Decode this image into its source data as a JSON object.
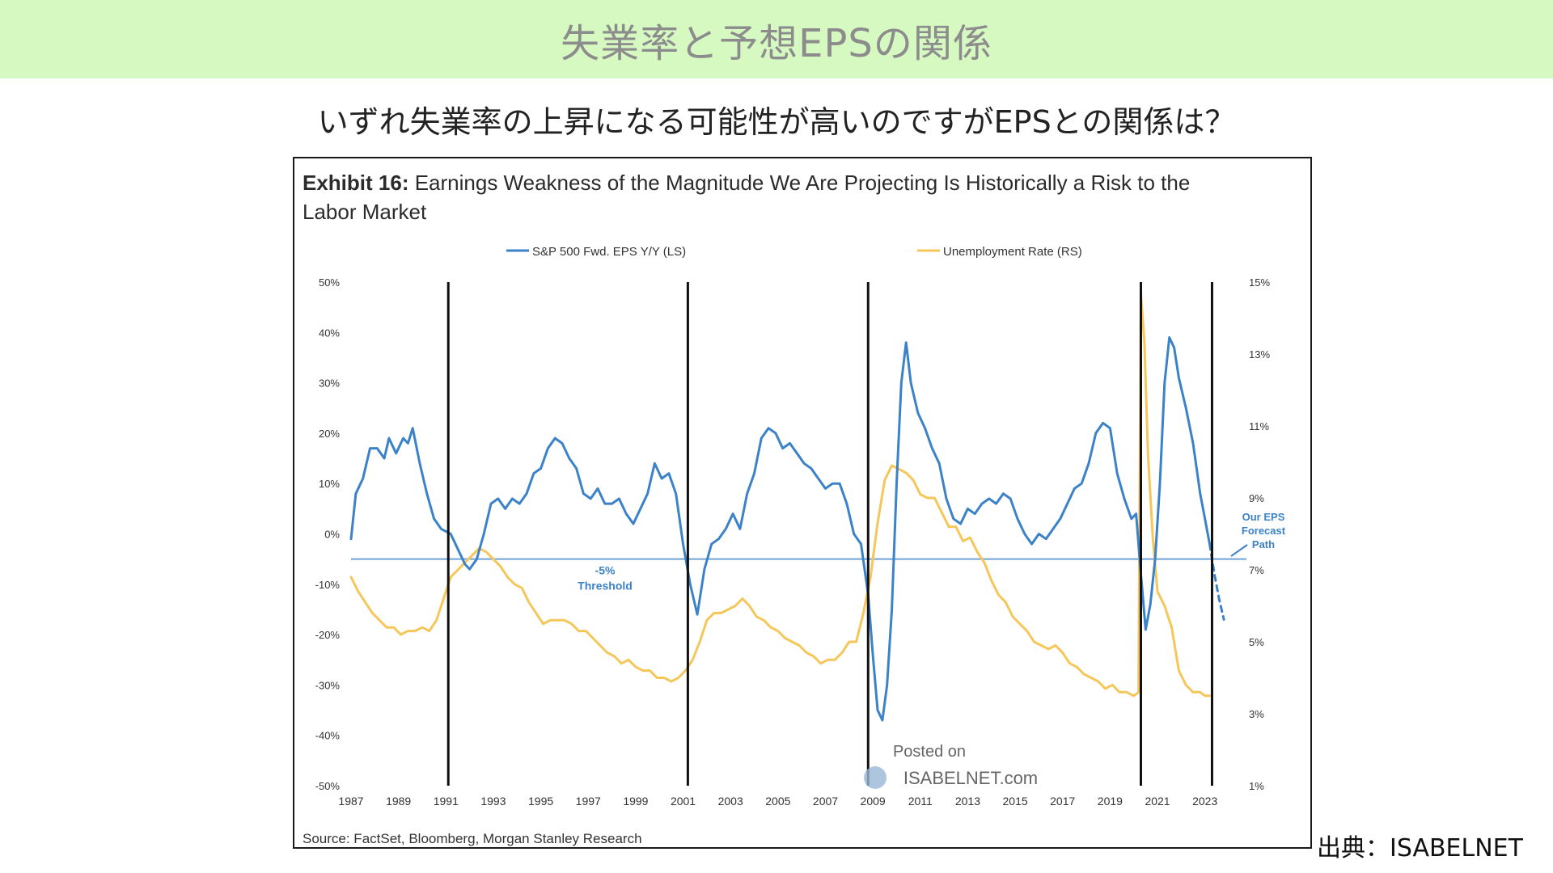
{
  "header": {
    "title": "失業率と予想EPSの関係"
  },
  "subtitle": "いずれ失業率の上昇になる可能性が高いのですがEPSとの関係は？",
  "credit": "出典：ISABELNET",
  "chart": {
    "exhibit_label": "Exhibit 16:",
    "exhibit_title_line1": "Earnings Weakness of the Magnitude We Are Projecting Is Historically a Risk to the",
    "exhibit_title_line2": "Labor Market",
    "source": "Source: FactSet, Bloomberg, Morgan Stanley Research",
    "watermark_line1": "Posted on",
    "watermark_line2": "ISABELNET.com",
    "threshold_label_1": "-5%",
    "threshold_label_2": "Threshold",
    "forecast_label": [
      "Our EPS",
      "Forecast",
      "Path"
    ]
  },
  "chart_data": {
    "type": "line",
    "legend_position": "top-center",
    "grid": false,
    "x_ticks": [
      "1987",
      "1989",
      "1991",
      "1993",
      "1995",
      "1997",
      "1999",
      "2001",
      "2003",
      "2005",
      "2007",
      "2009",
      "2011",
      "2013",
      "2015",
      "2017",
      "2019",
      "2021",
      "2023"
    ],
    "y_left_ticks": [
      "50%",
      "40%",
      "30%",
      "20%",
      "10%",
      "0%",
      "-10%",
      "-20%",
      "-30%",
      "-40%",
      "-50%"
    ],
    "y_right_ticks": [
      "15%",
      "13%",
      "11%",
      "9%",
      "7%",
      "5%",
      "3%",
      "1%"
    ],
    "ylim_left": [
      -50,
      50
    ],
    "ylim_right": [
      1,
      15
    ],
    "xlim": [
      1987,
      2024
    ],
    "threshold": -5,
    "recession_lines": [
      1991.1,
      2001.2,
      2008.8,
      2020.3,
      2023.3
    ],
    "series": [
      {
        "name": "S&P 500 Fwd. EPS Y/Y (LS)",
        "axis": "left",
        "color": "#3b82c9",
        "points": [
          [
            1987.0,
            -1
          ],
          [
            1987.2,
            8
          ],
          [
            1987.5,
            11
          ],
          [
            1987.8,
            17
          ],
          [
            1988.1,
            17
          ],
          [
            1988.4,
            15
          ],
          [
            1988.6,
            19
          ],
          [
            1988.9,
            16
          ],
          [
            1989.2,
            19
          ],
          [
            1989.4,
            18
          ],
          [
            1989.6,
            21
          ],
          [
            1989.9,
            14
          ],
          [
            1990.2,
            8
          ],
          [
            1990.5,
            3
          ],
          [
            1990.8,
            1
          ],
          [
            1991.2,
            0
          ],
          [
            1991.5,
            -3
          ],
          [
            1991.8,
            -6
          ],
          [
            1992.0,
            -7
          ],
          [
            1992.3,
            -5
          ],
          [
            1992.6,
            0
          ],
          [
            1992.9,
            6
          ],
          [
            1993.2,
            7
          ],
          [
            1993.5,
            5
          ],
          [
            1993.8,
            7
          ],
          [
            1994.1,
            6
          ],
          [
            1994.4,
            8
          ],
          [
            1994.7,
            12
          ],
          [
            1995.0,
            13
          ],
          [
            1995.3,
            17
          ],
          [
            1995.6,
            19
          ],
          [
            1995.9,
            18
          ],
          [
            1996.2,
            15
          ],
          [
            1996.5,
            13
          ],
          [
            1996.8,
            8
          ],
          [
            1997.1,
            7
          ],
          [
            1997.4,
            9
          ],
          [
            1997.7,
            6
          ],
          [
            1998.0,
            6
          ],
          [
            1998.3,
            7
          ],
          [
            1998.6,
            4
          ],
          [
            1998.9,
            2
          ],
          [
            1999.2,
            5
          ],
          [
            1999.5,
            8
          ],
          [
            1999.8,
            14
          ],
          [
            2000.1,
            11
          ],
          [
            2000.4,
            12
          ],
          [
            2000.7,
            8
          ],
          [
            2001.0,
            -2
          ],
          [
            2001.3,
            -10
          ],
          [
            2001.6,
            -16
          ],
          [
            2001.9,
            -7
          ],
          [
            2002.2,
            -2
          ],
          [
            2002.5,
            -1
          ],
          [
            2002.8,
            1
          ],
          [
            2003.1,
            4
          ],
          [
            2003.4,
            1
          ],
          [
            2003.7,
            8
          ],
          [
            2004.0,
            12
          ],
          [
            2004.3,
            19
          ],
          [
            2004.6,
            21
          ],
          [
            2004.9,
            20
          ],
          [
            2005.2,
            17
          ],
          [
            2005.5,
            18
          ],
          [
            2005.8,
            16
          ],
          [
            2006.1,
            14
          ],
          [
            2006.4,
            13
          ],
          [
            2006.7,
            11
          ],
          [
            2007.0,
            9
          ],
          [
            2007.3,
            10
          ],
          [
            2007.6,
            10
          ],
          [
            2007.9,
            6
          ],
          [
            2008.2,
            0
          ],
          [
            2008.5,
            -2
          ],
          [
            2008.8,
            -12
          ],
          [
            2009.0,
            -24
          ],
          [
            2009.2,
            -35
          ],
          [
            2009.4,
            -37
          ],
          [
            2009.6,
            -30
          ],
          [
            2009.8,
            -15
          ],
          [
            2010.0,
            10
          ],
          [
            2010.2,
            30
          ],
          [
            2010.4,
            38
          ],
          [
            2010.6,
            30
          ],
          [
            2010.9,
            24
          ],
          [
            2011.2,
            21
          ],
          [
            2011.5,
            17
          ],
          [
            2011.8,
            14
          ],
          [
            2012.1,
            7
          ],
          [
            2012.4,
            3
          ],
          [
            2012.7,
            2
          ],
          [
            2013.0,
            5
          ],
          [
            2013.3,
            4
          ],
          [
            2013.6,
            6
          ],
          [
            2013.9,
            7
          ],
          [
            2014.2,
            6
          ],
          [
            2014.5,
            8
          ],
          [
            2014.8,
            7
          ],
          [
            2015.1,
            3
          ],
          [
            2015.4,
            0
          ],
          [
            2015.7,
            -2
          ],
          [
            2016.0,
            0
          ],
          [
            2016.3,
            -1
          ],
          [
            2016.6,
            1
          ],
          [
            2016.9,
            3
          ],
          [
            2017.2,
            6
          ],
          [
            2017.5,
            9
          ],
          [
            2017.8,
            10
          ],
          [
            2018.1,
            14
          ],
          [
            2018.4,
            20
          ],
          [
            2018.7,
            22
          ],
          [
            2019.0,
            21
          ],
          [
            2019.3,
            12
          ],
          [
            2019.6,
            7
          ],
          [
            2019.9,
            3
          ],
          [
            2020.1,
            4
          ],
          [
            2020.3,
            -8
          ],
          [
            2020.5,
            -19
          ],
          [
            2020.7,
            -14
          ],
          [
            2020.9,
            -5
          ],
          [
            2021.1,
            10
          ],
          [
            2021.3,
            30
          ],
          [
            2021.5,
            39
          ],
          [
            2021.7,
            37
          ],
          [
            2021.9,
            31
          ],
          [
            2022.2,
            25
          ],
          [
            2022.5,
            18
          ],
          [
            2022.8,
            8
          ],
          [
            2023.0,
            3
          ],
          [
            2023.2,
            -2
          ]
        ]
      },
      {
        "name": "Unemployment Rate (RS)",
        "axis": "right",
        "color": "#f5c75a",
        "points": [
          [
            1987.0,
            6.8
          ],
          [
            1987.3,
            6.4
          ],
          [
            1987.6,
            6.1
          ],
          [
            1987.9,
            5.8
          ],
          [
            1988.2,
            5.6
          ],
          [
            1988.5,
            5.4
          ],
          [
            1988.8,
            5.4
          ],
          [
            1989.1,
            5.2
          ],
          [
            1989.4,
            5.3
          ],
          [
            1989.7,
            5.3
          ],
          [
            1990.0,
            5.4
          ],
          [
            1990.3,
            5.3
          ],
          [
            1990.6,
            5.6
          ],
          [
            1990.9,
            6.2
          ],
          [
            1991.2,
            6.8
          ],
          [
            1991.5,
            7.0
          ],
          [
            1991.8,
            7.2
          ],
          [
            1992.1,
            7.4
          ],
          [
            1992.4,
            7.6
          ],
          [
            1992.7,
            7.5
          ],
          [
            1993.0,
            7.3
          ],
          [
            1993.3,
            7.1
          ],
          [
            1993.6,
            6.8
          ],
          [
            1993.9,
            6.6
          ],
          [
            1994.2,
            6.5
          ],
          [
            1994.5,
            6.1
          ],
          [
            1994.8,
            5.8
          ],
          [
            1995.1,
            5.5
          ],
          [
            1995.4,
            5.6
          ],
          [
            1995.7,
            5.6
          ],
          [
            1996.0,
            5.6
          ],
          [
            1996.3,
            5.5
          ],
          [
            1996.6,
            5.3
          ],
          [
            1996.9,
            5.3
          ],
          [
            1997.2,
            5.1
          ],
          [
            1997.5,
            4.9
          ],
          [
            1997.8,
            4.7
          ],
          [
            1998.1,
            4.6
          ],
          [
            1998.4,
            4.4
          ],
          [
            1998.7,
            4.5
          ],
          [
            1999.0,
            4.3
          ],
          [
            1999.3,
            4.2
          ],
          [
            1999.6,
            4.2
          ],
          [
            1999.9,
            4.0
          ],
          [
            2000.2,
            4.0
          ],
          [
            2000.5,
            3.9
          ],
          [
            2000.8,
            4.0
          ],
          [
            2001.1,
            4.2
          ],
          [
            2001.4,
            4.5
          ],
          [
            2001.7,
            5.0
          ],
          [
            2002.0,
            5.6
          ],
          [
            2002.3,
            5.8
          ],
          [
            2002.6,
            5.8
          ],
          [
            2002.9,
            5.9
          ],
          [
            2003.2,
            6.0
          ],
          [
            2003.5,
            6.2
          ],
          [
            2003.8,
            6.0
          ],
          [
            2004.1,
            5.7
          ],
          [
            2004.4,
            5.6
          ],
          [
            2004.7,
            5.4
          ],
          [
            2005.0,
            5.3
          ],
          [
            2005.3,
            5.1
          ],
          [
            2005.6,
            5.0
          ],
          [
            2005.9,
            4.9
          ],
          [
            2006.2,
            4.7
          ],
          [
            2006.5,
            4.6
          ],
          [
            2006.8,
            4.4
          ],
          [
            2007.1,
            4.5
          ],
          [
            2007.4,
            4.5
          ],
          [
            2007.7,
            4.7
          ],
          [
            2008.0,
            5.0
          ],
          [
            2008.3,
            5.0
          ],
          [
            2008.6,
            5.8
          ],
          [
            2008.9,
            6.8
          ],
          [
            2009.2,
            8.3
          ],
          [
            2009.5,
            9.5
          ],
          [
            2009.8,
            9.9
          ],
          [
            2010.1,
            9.8
          ],
          [
            2010.4,
            9.7
          ],
          [
            2010.7,
            9.5
          ],
          [
            2011.0,
            9.1
          ],
          [
            2011.3,
            9.0
          ],
          [
            2011.6,
            9.0
          ],
          [
            2011.9,
            8.6
          ],
          [
            2012.2,
            8.2
          ],
          [
            2012.5,
            8.2
          ],
          [
            2012.8,
            7.8
          ],
          [
            2013.1,
            7.9
          ],
          [
            2013.4,
            7.5
          ],
          [
            2013.7,
            7.2
          ],
          [
            2014.0,
            6.7
          ],
          [
            2014.3,
            6.3
          ],
          [
            2014.6,
            6.1
          ],
          [
            2014.9,
            5.7
          ],
          [
            2015.2,
            5.5
          ],
          [
            2015.5,
            5.3
          ],
          [
            2015.8,
            5.0
          ],
          [
            2016.1,
            4.9
          ],
          [
            2016.4,
            4.8
          ],
          [
            2016.7,
            4.9
          ],
          [
            2017.0,
            4.7
          ],
          [
            2017.3,
            4.4
          ],
          [
            2017.6,
            4.3
          ],
          [
            2017.9,
            4.1
          ],
          [
            2018.2,
            4.0
          ],
          [
            2018.5,
            3.9
          ],
          [
            2018.8,
            3.7
          ],
          [
            2019.1,
            3.8
          ],
          [
            2019.4,
            3.6
          ],
          [
            2019.7,
            3.6
          ],
          [
            2020.0,
            3.5
          ],
          [
            2020.2,
            3.6
          ],
          [
            2020.3,
            14.7
          ],
          [
            2020.45,
            13.3
          ],
          [
            2020.6,
            10.2
          ],
          [
            2020.8,
            7.9
          ],
          [
            2021.0,
            6.4
          ],
          [
            2021.3,
            6.0
          ],
          [
            2021.6,
            5.4
          ],
          [
            2021.9,
            4.2
          ],
          [
            2022.2,
            3.8
          ],
          [
            2022.5,
            3.6
          ],
          [
            2022.8,
            3.6
          ],
          [
            2023.0,
            3.5
          ],
          [
            2023.2,
            3.5
          ]
        ]
      },
      {
        "name": "Our EPS Forecast Path",
        "axis": "left",
        "color": "#3b82c9",
        "dashed": true,
        "points": [
          [
            2023.2,
            -2
          ],
          [
            2023.4,
            -8
          ],
          [
            2023.6,
            -13
          ],
          [
            2023.8,
            -17
          ]
        ]
      }
    ]
  }
}
